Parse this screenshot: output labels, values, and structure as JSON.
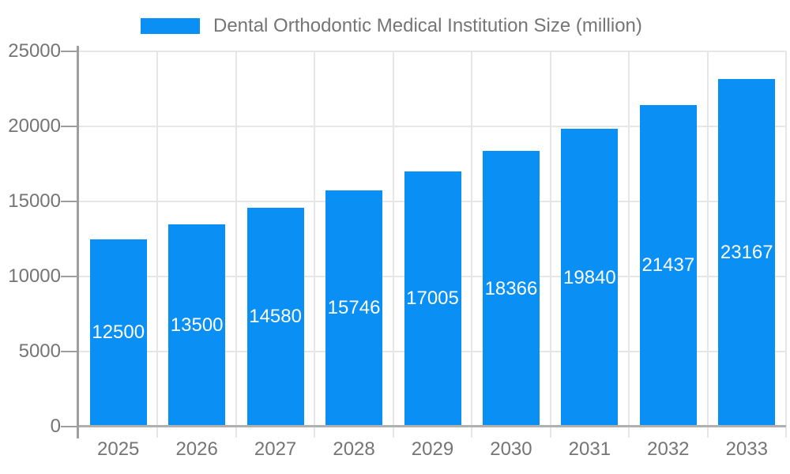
{
  "legend": {
    "label": "Dental Orthodontic Medical Institution Size (million)"
  },
  "chart_data": {
    "type": "bar",
    "title": "Dental Orthodontic Medical Institution Size (million)",
    "categories": [
      "2025",
      "2026",
      "2027",
      "2028",
      "2029",
      "2030",
      "2031",
      "2032",
      "2033"
    ],
    "values": [
      12500,
      13500,
      14580,
      15746,
      17005,
      18366,
      19840,
      21437,
      23167
    ],
    "xlabel": "",
    "ylabel": "",
    "ylim": [
      0,
      25000
    ],
    "yticks": [
      0,
      5000,
      10000,
      15000,
      20000,
      25000
    ],
    "grid": true,
    "legend_position": "top",
    "colors": {
      "bar": "#0a90f5",
      "axis_text": "#757575",
      "value_label": "#ffffff",
      "gridline": "#e6e6e6",
      "x_axis_line": "#b0b0b0",
      "y_axis_line": "#9e9e9e",
      "background": "#ffffff"
    }
  }
}
